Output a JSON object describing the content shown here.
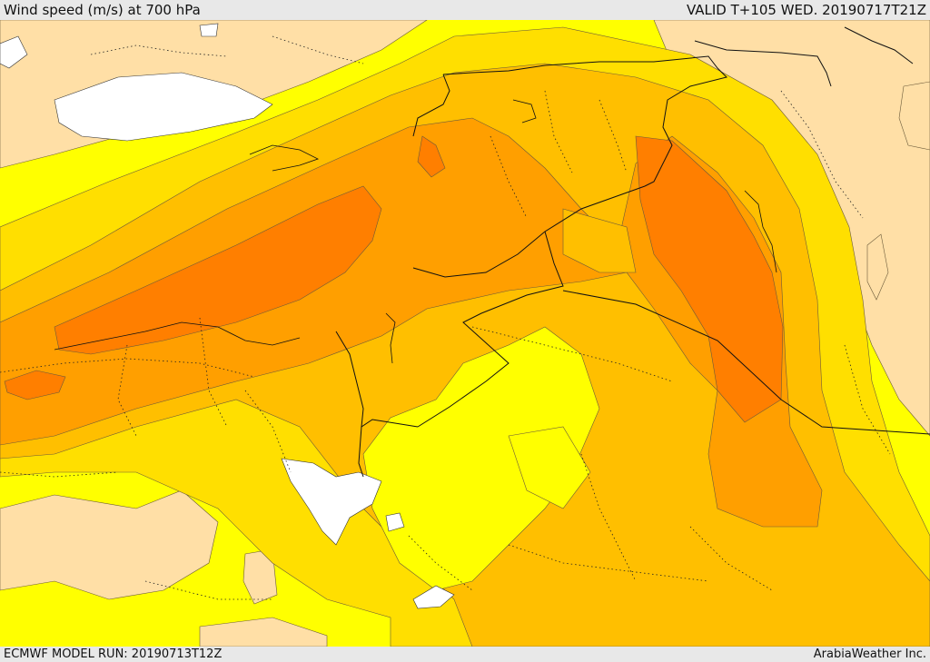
{
  "header": {
    "title": "Wind speed (m/s) at 700 hPa",
    "valid": "VALID T+105 WED. 20190717T21Z"
  },
  "footer": {
    "model_run": "ECMWF MODEL RUN: 20190713T12Z",
    "credit": "ArabiaWeather Inc."
  },
  "map": {
    "field": "wind-speed-shading",
    "colors": {
      "lowest": "#ffdfa6",
      "low": "#ffff00",
      "mid_low": "#ffdf00",
      "mid": "#ffbf00",
      "mid_high": "#ff9f00",
      "high": "#ff7f00",
      "water_mask": "#ffffff"
    }
  }
}
